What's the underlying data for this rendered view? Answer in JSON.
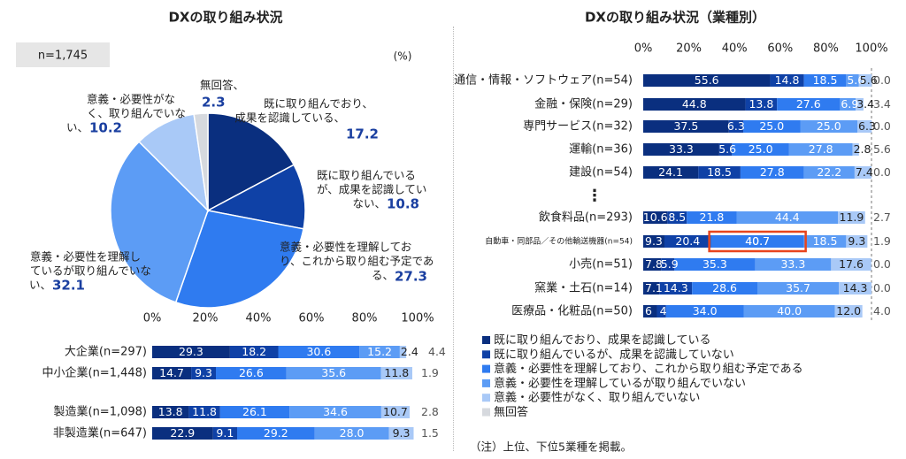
{
  "colors": {
    "c1": "#0a2f7f",
    "c2": "#0f41a6",
    "c3": "#2f7bf0",
    "c4": "#5c9cf5",
    "c5": "#a9c9f7",
    "c6": "#d6d9de",
    "highlight": "#e8451e",
    "label_blue": "#1a3fa0"
  },
  "chart_data": [
    {
      "type": "pie",
      "title": "DXの取り組み状況",
      "n_label": "n=1,745",
      "unit_label": "(%)",
      "categories": [
        "既に取り組んでおり、成果を認識している",
        "既に取り組んでいるが、成果を認識していない",
        "意義・必要性を理解しており、これから取り組む予定である",
        "意義・必要性を理解しているが取り組んでいない",
        "意義・必要性がなく、取り組んでいない",
        "無回答"
      ],
      "values": [
        17.2,
        10.8,
        27.3,
        32.1,
        10.2,
        2.3
      ],
      "slice_labels": [
        {
          "lines": [
            "既に取り組んでおり、",
            "成果を認識している、"
          ],
          "value": "17.2"
        },
        {
          "lines": [
            "既に取り組んでいる",
            "が、成果を認識してい",
            "ない、"
          ],
          "value": "10.8"
        },
        {
          "lines": [
            "意義・必要性を理解してお",
            "り、これから取り組む予定であ",
            "る、"
          ],
          "value": "27.3"
        },
        {
          "lines": [
            "意義・必要性を理解し",
            "ているが取り組んでいな",
            "い、"
          ],
          "value": "32.1"
        },
        {
          "lines": [
            "意義・必要性がな",
            "く、取り組んでいな",
            "い、"
          ],
          "value": "10.2"
        },
        {
          "lines": [
            "無回答、"
          ],
          "value": "2.3"
        }
      ]
    },
    {
      "type": "bar",
      "orientation": "horizontal",
      "stacked": true,
      "xlim": [
        0,
        100
      ],
      "ticks": [
        "0%",
        "20%",
        "40%",
        "60%",
        "80%",
        "100%"
      ],
      "categories": [
        "大企業(n=297)",
        "中小企業(n=1,448)",
        "製造業(n=1,098)",
        "非製造業(n=647)"
      ],
      "values": [
        [
          29.3,
          18.2,
          30.6,
          15.2,
          2.4,
          4.4
        ],
        [
          14.7,
          9.3,
          26.6,
          35.6,
          11.8,
          1.9
        ],
        [
          13.8,
          11.8,
          26.1,
          34.6,
          10.7,
          2.8
        ],
        [
          22.9,
          9.1,
          29.2,
          28.0,
          9.3,
          1.5
        ]
      ]
    },
    {
      "type": "bar",
      "orientation": "horizontal",
      "stacked": true,
      "title": "DXの取り組み状況（業種別）",
      "xlim": [
        0,
        100
      ],
      "ticks": [
        "0%",
        "20%",
        "40%",
        "60%",
        "80%",
        "100%"
      ],
      "ellipsis": "⋮",
      "categories": [
        "通信・情報・ソフトウェア(n=54)",
        "金融・保険(n=29)",
        "専門サービス(n=32)",
        "運輸(n=36)",
        "建設(n=54)",
        "飲食料品(n=293)",
        "自動車・同部品／その他輸送機器(n=54)",
        "小売(n=51)",
        "窯業・土石(n=14)",
        "医療品・化粧品(n=50)"
      ],
      "values": [
        [
          55.6,
          14.8,
          18.5,
          5.6,
          5.6,
          0.0
        ],
        [
          44.8,
          13.8,
          27.6,
          6.9,
          3.4,
          3.4
        ],
        [
          37.5,
          6.3,
          25.0,
          25.0,
          6.3,
          0.0
        ],
        [
          33.3,
          5.6,
          25.0,
          27.8,
          2.8,
          5.6
        ],
        [
          24.1,
          18.5,
          27.8,
          22.2,
          7.4,
          0.0
        ],
        [
          10.6,
          8.5,
          21.8,
          44.4,
          11.9,
          2.7
        ],
        [
          9.3,
          20.4,
          40.7,
          18.5,
          9.3,
          1.9
        ],
        [
          7.8,
          5.9,
          35.3,
          33.3,
          17.6,
          0.0
        ],
        [
          7.1,
          14.3,
          28.6,
          35.7,
          14.3,
          0.0
        ],
        [
          6.0,
          4.0,
          34.0,
          40.0,
          12.0,
          4.0
        ]
      ],
      "label_text": [
        [
          "55.6",
          "14.8",
          "18.5",
          "5.6",
          "5.6",
          "0.0"
        ],
        [
          "44.8",
          "13.8",
          "27.6",
          "6.9",
          "3.4",
          "3.4"
        ],
        [
          "37.5",
          "6.3",
          "25.0",
          "25.0",
          "6.3",
          "0.0"
        ],
        [
          "33.3",
          "5.6",
          "25.0",
          "27.8",
          "2.8",
          "5.6"
        ],
        [
          "24.1",
          "18.5",
          "27.8",
          "22.2",
          "7.4",
          "0.0"
        ],
        [
          "10.6",
          "8.5",
          "21.8",
          "44.4",
          "11.9",
          "2.7"
        ],
        [
          "9.3",
          "20.4",
          "40.7",
          "18.5",
          "9.3",
          "1.9"
        ],
        [
          "7.8",
          "5.9",
          "35.3",
          "33.3",
          "17.6",
          "0.0"
        ],
        [
          "7.1",
          "14.3",
          "28.6",
          "35.7",
          "14.3",
          "0.0"
        ],
        [
          "6",
          "4",
          "34.0",
          "40.0",
          "12.0",
          "4.0"
        ]
      ],
      "highlighted": {
        "row": 6,
        "segment": 2
      },
      "legend": [
        "既に取り組んでおり、成果を認識している",
        "既に取り組んでいるが、成果を認識していない",
        "意義・必要性を理解しており、これから取り組む予定である",
        "意義・必要性を理解しているが取り組んでいない",
        "意義・必要性がなく、取り組んでいない",
        "無回答"
      ],
      "note": "（注）上位、下位5業種を掲載。"
    }
  ]
}
